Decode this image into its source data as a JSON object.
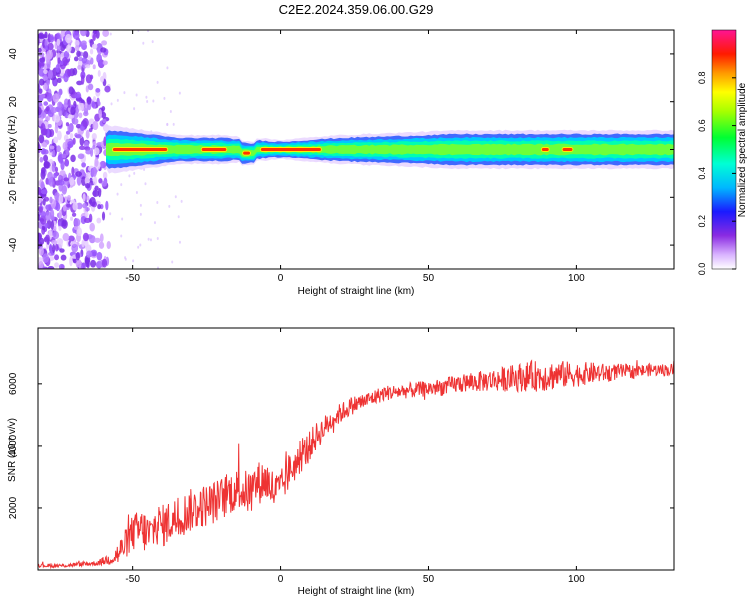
{
  "title": "C2E2.2024.359.06.00.G29",
  "chart_data": [
    {
      "type": "heatmap",
      "xlabel": "Height of straight line (km)",
      "ylabel": "Frequency (Hz)",
      "xlim": [
        -82,
        133
      ],
      "ylim": [
        -50,
        50
      ],
      "xticks": [
        "-50",
        "0",
        "50",
        "100"
      ],
      "xtick_values": [
        -50,
        0,
        50,
        100
      ],
      "yticks": [
        "-40",
        "-20",
        "0",
        "20",
        "40"
      ],
      "ytick_values": [
        -40,
        -20,
        0,
        20,
        40
      ],
      "grid": false,
      "colorbar": {
        "label": "Normalized spectral amplitude",
        "range": [
          0,
          1
        ],
        "ticks": [
          "0.0",
          "0.2",
          "0.4",
          "0.6",
          "0.8"
        ],
        "tick_values": [
          0.0,
          0.2,
          0.4,
          0.6,
          0.8
        ]
      },
      "noise_region_x": [
        -82,
        -58
      ],
      "signal_band": {
        "x_start": -59,
        "x_end": 133,
        "center_frequency": 0,
        "halfwidth_profile": [
          [
            -58,
            5
          ],
          [
            -45,
            4
          ],
          [
            -35,
            3
          ],
          [
            -20,
            3
          ],
          [
            0,
            2
          ],
          [
            20,
            3
          ],
          [
            60,
            4
          ],
          [
            100,
            4
          ],
          [
            133,
            4
          ]
        ],
        "peak_segments": [
          [
            -57,
            -38
          ],
          [
            -27,
            -18
          ],
          [
            -13,
            -10
          ],
          [
            -7,
            14
          ],
          [
            88,
            91
          ],
          [
            95,
            99
          ]
        ]
      }
    },
    {
      "type": "line",
      "xlabel": "Height of straight line (km)",
      "ylabel": "SNR (10 * v/v)",
      "xlim": [
        -82,
        133
      ],
      "ylim": [
        0,
        7800
      ],
      "xticks": [
        "-50",
        "0",
        "50",
        "100"
      ],
      "xtick_values": [
        -50,
        0,
        50,
        100
      ],
      "yticks": [
        "2000",
        "4000",
        "6000"
      ],
      "ytick_values": [
        2000,
        4000,
        6000
      ],
      "grid": false,
      "series": [
        {
          "color": "#ee3333",
          "x": [
            -82,
            -75,
            -68,
            -62,
            -58,
            -55,
            -52,
            -50,
            -47,
            -44,
            -42,
            -40,
            -37,
            -34,
            -31,
            -28,
            -25,
            -22,
            -20,
            -17,
            -14,
            -11,
            -8,
            -5,
            -2,
            0,
            3,
            6,
            9,
            12,
            15,
            18,
            21,
            24,
            27,
            30,
            35,
            40,
            45,
            50,
            55,
            60,
            65,
            70,
            75,
            80,
            85,
            90,
            95,
            100,
            105,
            110,
            115,
            120,
            125,
            130,
            133
          ],
          "y": [
            150,
            130,
            180,
            220,
            350,
            500,
            900,
            1200,
            1300,
            1100,
            1500,
            1400,
            1600,
            1700,
            1900,
            2000,
            2100,
            2200,
            2300,
            2500,
            2600,
            2500,
            2800,
            2900,
            2500,
            2600,
            3200,
            3500,
            3900,
            4300,
            4600,
            4900,
            5100,
            5300,
            5400,
            5500,
            5700,
            5750,
            5800,
            5850,
            5900,
            6000,
            6050,
            6100,
            6150,
            6200,
            6250,
            6250,
            6300,
            6300,
            6350,
            6350,
            6400,
            6400,
            6450,
            6450,
            6450
          ],
          "noise_amplitude": [
            60,
            60,
            70,
            80,
            200,
            400,
            500,
            600,
            700,
            700,
            700,
            700,
            700,
            700,
            700,
            700,
            700,
            700,
            700,
            700,
            700,
            700,
            700,
            700,
            700,
            600,
            600,
            500,
            500,
            450,
            400,
            350,
            320,
            300,
            280,
            260,
            250,
            250,
            250,
            260,
            280,
            300,
            320,
            350,
            400,
            450,
            500,
            500,
            450,
            400,
            350,
            300,
            250,
            220,
            200,
            200,
            200
          ]
        }
      ]
    }
  ]
}
